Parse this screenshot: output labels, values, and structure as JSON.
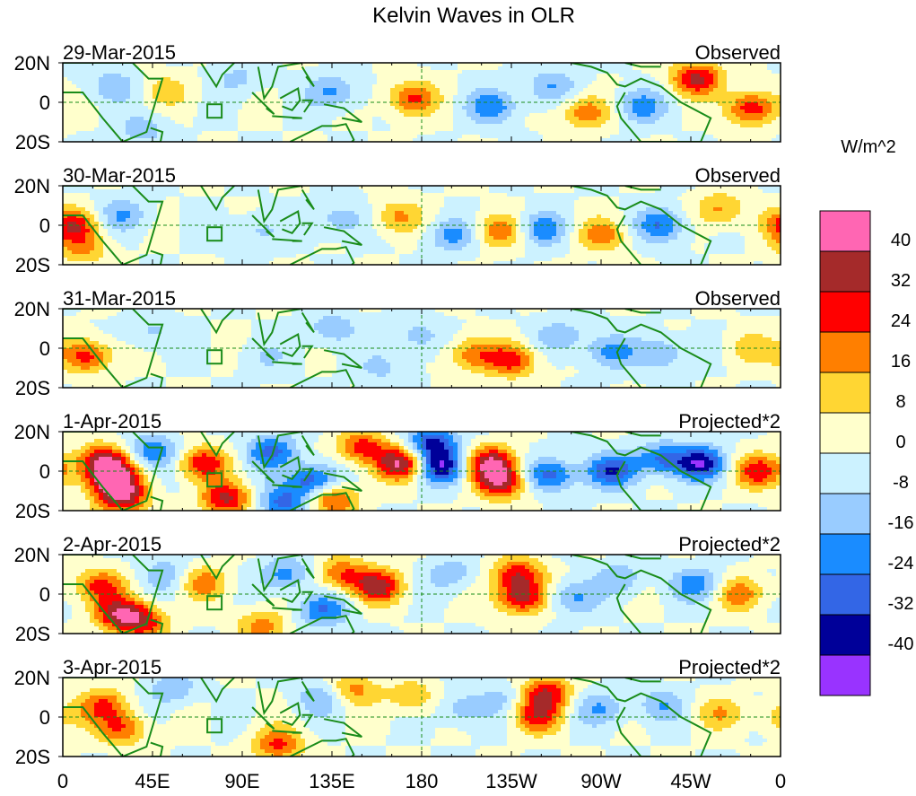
{
  "chart_data": {
    "type": "heatmap",
    "title": "Kelvin Waves in OLR",
    "units": "W/m^2",
    "y_ticks": [
      "20N",
      "0",
      "20S"
    ],
    "x_ticks": [
      "0",
      "45E",
      "90E",
      "135E",
      "180",
      "135W",
      "90W",
      "45W",
      "0"
    ],
    "x_tick_values_deg": [
      0,
      45,
      90,
      135,
      180,
      225,
      270,
      315,
      360
    ],
    "y_range_deg": [
      -20,
      20
    ],
    "x_range_deg": [
      0,
      360
    ],
    "reference_lines": {
      "equator_lat": 0,
      "dateline_lon": 180
    },
    "colorbar": {
      "levels": [
        "40",
        "32",
        "24",
        "16",
        "8",
        "0",
        "-8",
        "-16",
        "-24",
        "-32",
        "-40"
      ],
      "colors": [
        "#ff66b3",
        "#a52a2a",
        "#ff0000",
        "#ff7f00",
        "#ffd633",
        "#ffffcc",
        "#ccf2ff",
        "#99ccff",
        "#1a8cff",
        "#3366e6",
        "#000099",
        "#9933ff"
      ]
    },
    "panels": [
      {
        "date": "29-Mar-2015",
        "label": "Observed",
        "amp": 0.75,
        "features": [
          [
            25,
            8,
            -14
          ],
          [
            52,
            6,
            12
          ],
          [
            88,
            12,
            -10
          ],
          [
            135,
            5,
            -18
          ],
          [
            175,
            2,
            26
          ],
          [
            215,
            -2,
            -22
          ],
          [
            245,
            8,
            -16
          ],
          [
            262,
            -5,
            22
          ],
          [
            290,
            -2,
            -20
          ],
          [
            318,
            12,
            34
          ],
          [
            345,
            -3,
            30
          ],
          [
            40,
            -14,
            -12
          ]
        ]
      },
      {
        "date": "30-Mar-2015",
        "label": "Observed",
        "amp": 0.75,
        "features": [
          [
            5,
            0,
            30
          ],
          [
            30,
            5,
            -16
          ],
          [
            98,
            -3,
            -10
          ],
          [
            140,
            3,
            -14
          ],
          [
            168,
            4,
            18
          ],
          [
            195,
            -5,
            -18
          ],
          [
            220,
            -3,
            22
          ],
          [
            240,
            -2,
            -22
          ],
          [
            270,
            -5,
            20
          ],
          [
            300,
            0,
            -24
          ],
          [
            330,
            8,
            18
          ],
          [
            10,
            -12,
            16
          ]
        ]
      },
      {
        "date": "31-Mar-2015",
        "label": "Observed",
        "amp": 0.75,
        "features": [
          [
            12,
            -4,
            28
          ],
          [
            45,
            8,
            -10
          ],
          [
            102,
            -5,
            -8
          ],
          [
            135,
            10,
            -14
          ],
          [
            178,
            6,
            -12
          ],
          [
            205,
            -3,
            20
          ],
          [
            225,
            -6,
            28
          ],
          [
            250,
            6,
            -14
          ],
          [
            275,
            -2,
            -18
          ],
          [
            300,
            -3,
            -16
          ],
          [
            345,
            0,
            12
          ],
          [
            160,
            -10,
            -10
          ]
        ]
      },
      {
        "date": "1-Apr-2015",
        "label": "Projected*2",
        "amp": 1.0,
        "features": [
          [
            20,
            5,
            38
          ],
          [
            25,
            -4,
            44
          ],
          [
            30,
            -14,
            34
          ],
          [
            45,
            10,
            -24
          ],
          [
            70,
            4,
            30
          ],
          [
            82,
            -14,
            34
          ],
          [
            105,
            10,
            -26
          ],
          [
            125,
            -5,
            -32
          ],
          [
            135,
            -14,
            28
          ],
          [
            150,
            12,
            28
          ],
          [
            185,
            14,
            -34
          ],
          [
            170,
            4,
            40
          ],
          [
            190,
            2,
            -36
          ],
          [
            215,
            4,
            38
          ],
          [
            220,
            -6,
            34
          ],
          [
            245,
            -2,
            -28
          ],
          [
            275,
            0,
            -30
          ],
          [
            300,
            6,
            -26
          ],
          [
            320,
            4,
            -36
          ],
          [
            350,
            0,
            30
          ],
          [
            110,
            -16,
            -26
          ]
        ]
      },
      {
        "date": "2-Apr-2015",
        "label": "Projected*2",
        "amp": 1.0,
        "features": [
          [
            18,
            4,
            26
          ],
          [
            28,
            -10,
            32
          ],
          [
            40,
            -14,
            28
          ],
          [
            52,
            10,
            -14
          ],
          [
            70,
            6,
            20
          ],
          [
            112,
            10,
            -20
          ],
          [
            130,
            -8,
            -24
          ],
          [
            140,
            10,
            24
          ],
          [
            158,
            4,
            34
          ],
          [
            195,
            10,
            -14
          ],
          [
            228,
            10,
            30
          ],
          [
            230,
            -2,
            34
          ],
          [
            255,
            -2,
            -18
          ],
          [
            280,
            8,
            -14
          ],
          [
            318,
            5,
            -20
          ],
          [
            340,
            0,
            20
          ],
          [
            100,
            -16,
            20
          ]
        ]
      },
      {
        "date": "3-Apr-2015",
        "label": "Projected*2",
        "amp": 1.0,
        "features": [
          [
            20,
            6,
            22
          ],
          [
            30,
            -6,
            22
          ],
          [
            55,
            14,
            -14
          ],
          [
            108,
            -14,
            26
          ],
          [
            130,
            10,
            -16
          ],
          [
            145,
            14,
            20
          ],
          [
            175,
            10,
            16
          ],
          [
            200,
            4,
            -14
          ],
          [
            222,
            10,
            -10
          ],
          [
            242,
            12,
            32
          ],
          [
            238,
            0,
            26
          ],
          [
            270,
            4,
            -16
          ],
          [
            300,
            6,
            -14
          ],
          [
            330,
            2,
            14
          ],
          [
            360,
            0,
            12
          ]
        ]
      }
    ]
  }
}
